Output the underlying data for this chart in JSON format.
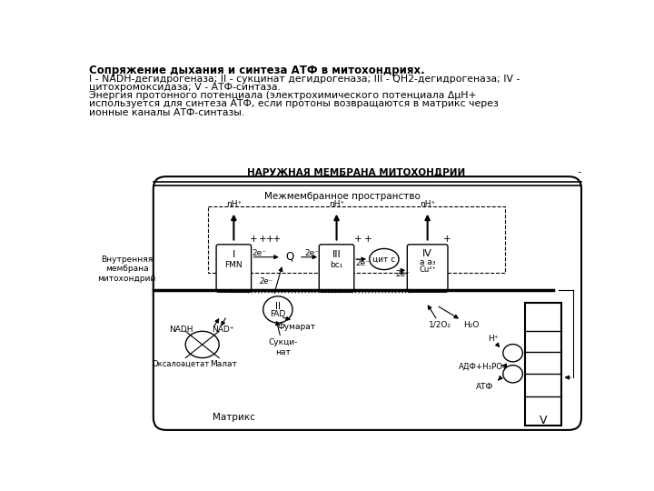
{
  "title_bold": "Сопряжение дыхания и синтеза АТФ в митохондриях.",
  "line2": "I - NADH-дегидрогеназа; II - сукцинат дегидрогеназа; III - QH2-дегидрогеназа; IV -",
  "line3": "цитохромоксидаза; V - АТФ-синтаза.",
  "line4": "Энергия протонного потенциала (электрохимического потенциала ΔμH+",
  "line5": "используется для синтеза АТФ, если протоны возвращаются в матрикс через",
  "line6": "ионные каналы АТФ-синтазы.",
  "bg_color": "#ffffff"
}
